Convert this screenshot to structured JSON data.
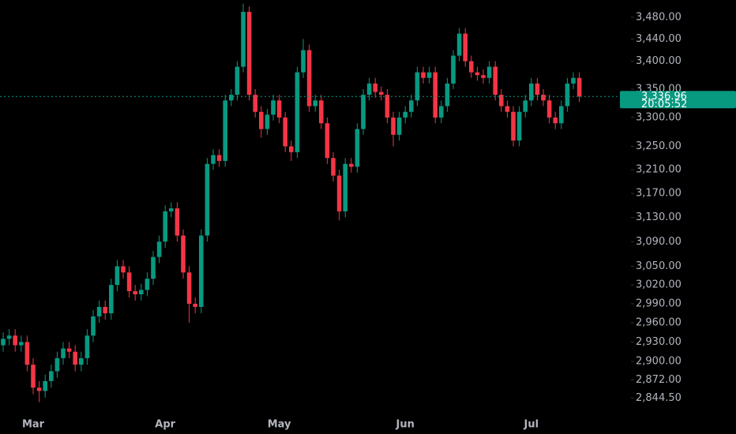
{
  "chart_data": {
    "type": "candlestick",
    "log_scale": true,
    "up_color": "#089981",
    "down_color": "#f23645",
    "ylim": [
      2820,
      3512
    ],
    "yticks": [
      {
        "value": 3480,
        "label": "3,480.00"
      },
      {
        "value": 3440,
        "label": "3,440.00"
      },
      {
        "value": 3400,
        "label": "3,400.00"
      },
      {
        "value": 3350,
        "label": "3,350.00"
      },
      {
        "value": 3300,
        "label": "3,300.00"
      },
      {
        "value": 3250,
        "label": "3,250.00"
      },
      {
        "value": 3210,
        "label": "3,210.00"
      },
      {
        "value": 3170,
        "label": "3,170.00"
      },
      {
        "value": 3130,
        "label": "3,130.00"
      },
      {
        "value": 3090,
        "label": "3,090.00"
      },
      {
        "value": 3050,
        "label": "3,050.00"
      },
      {
        "value": 3020,
        "label": "3,020.00"
      },
      {
        "value": 2990,
        "label": "2,990.00"
      },
      {
        "value": 2960,
        "label": "2,960.00"
      },
      {
        "value": 2930,
        "label": "2,930.00"
      },
      {
        "value": 2900,
        "label": "2,900.00"
      },
      {
        "value": 2872,
        "label": "2,872.00"
      },
      {
        "value": 2844.5,
        "label": "2,844.50"
      }
    ],
    "last_price": {
      "value": 3336.96,
      "label": "3,336.96"
    },
    "countdown": "20:05:52",
    "categories": [
      null,
      null,
      null,
      null,
      null,
      "Mar",
      null,
      null,
      null,
      null,
      null,
      null,
      null,
      null,
      null,
      null,
      null,
      null,
      null,
      null,
      null,
      null,
      null,
      null,
      null,
      null,
      null,
      "Apr",
      null,
      null,
      null,
      null,
      null,
      null,
      null,
      null,
      null,
      null,
      null,
      null,
      null,
      null,
      null,
      null,
      null,
      null,
      "May",
      null,
      null,
      null,
      null,
      null,
      null,
      null,
      null,
      null,
      null,
      null,
      null,
      null,
      null,
      null,
      null,
      null,
      null,
      null,
      null,
      "Jun",
      null,
      null,
      null,
      null,
      null,
      null,
      null,
      null,
      null,
      null,
      null,
      null,
      null,
      null,
      null,
      null,
      null,
      null,
      null,
      null,
      "Jul",
      null,
      null,
      null,
      null,
      null,
      null,
      null,
      null
    ],
    "open": [
      2925,
      2935,
      2940,
      2925,
      2930,
      2895,
      2860,
      2855,
      2870,
      2885,
      2905,
      2920,
      2915,
      2895,
      2905,
      2940,
      2970,
      2985,
      2975,
      3020,
      3050,
      3040,
      3010,
      3005,
      3012,
      3030,
      3065,
      3090,
      3140,
      3145,
      3100,
      3040,
      2990,
      2985,
      3100,
      3220,
      3235,
      3225,
      3330,
      3340,
      3390,
      3490,
      3340,
      3310,
      3280,
      3305,
      3330,
      3300,
      3250,
      3240,
      3380,
      3420,
      3320,
      3330,
      3290,
      3230,
      3200,
      3140,
      3220,
      3215,
      3280,
      3340,
      3360,
      3345,
      3340,
      3300,
      3270,
      3300,
      3310,
      3330,
      3380,
      3370,
      3380,
      3300,
      3320,
      3360,
      3410,
      3450,
      3400,
      3380,
      3375,
      3370,
      3390,
      3340,
      3320,
      3310,
      3260,
      3310,
      3330,
      3360,
      3340,
      3330,
      3300,
      3290,
      3320,
      3360,
      3370
    ],
    "high": [
      2945,
      2950,
      2950,
      2940,
      2940,
      2905,
      2870,
      2880,
      2895,
      2915,
      2930,
      2930,
      2925,
      2915,
      2950,
      2980,
      2995,
      2995,
      3030,
      3060,
      3060,
      3050,
      3020,
      3022,
      3040,
      3075,
      3100,
      3150,
      3155,
      3155,
      3110,
      3050,
      3000,
      3110,
      3230,
      3245,
      3245,
      3340,
      3350,
      3400,
      3505,
      3500,
      3350,
      3320,
      3315,
      3340,
      3340,
      3310,
      3260,
      3390,
      3440,
      3430,
      3340,
      3340,
      3300,
      3240,
      3210,
      3230,
      3230,
      3290,
      3350,
      3370,
      3370,
      3355,
      3350,
      3310,
      3310,
      3320,
      3340,
      3390,
      3390,
      3390,
      3390,
      3330,
      3370,
      3420,
      3460,
      3460,
      3410,
      3390,
      3385,
      3400,
      3400,
      3350,
      3330,
      3320,
      3320,
      3340,
      3370,
      3370,
      3350,
      3340,
      3310,
      3330,
      3370,
      3380,
      3380
    ],
    "low": [
      2915,
      2925,
      2915,
      2915,
      2885,
      2850,
      2838,
      2845,
      2860,
      2875,
      2895,
      2905,
      2885,
      2885,
      2895,
      2930,
      2960,
      2965,
      2965,
      3010,
      3030,
      3000,
      2995,
      2995,
      3002,
      3020,
      3055,
      3080,
      3130,
      3090,
      3030,
      2960,
      2975,
      2975,
      3090,
      3210,
      3215,
      3215,
      3320,
      3330,
      3380,
      3330,
      3300,
      3265,
      3270,
      3295,
      3290,
      3240,
      3225,
      3230,
      3370,
      3310,
      3310,
      3280,
      3220,
      3190,
      3125,
      3130,
      3205,
      3205,
      3270,
      3330,
      3335,
      3330,
      3290,
      3250,
      3260,
      3290,
      3300,
      3320,
      3360,
      3360,
      3290,
      3290,
      3310,
      3350,
      3400,
      3390,
      3370,
      3365,
      3360,
      3360,
      3330,
      3310,
      3300,
      3250,
      3250,
      3300,
      3320,
      3330,
      3320,
      3290,
      3280,
      3280,
      3310,
      3350,
      3327
    ],
    "close": [
      2935,
      2940,
      2925,
      2930,
      2895,
      2860,
      2855,
      2870,
      2885,
      2905,
      2920,
      2915,
      2895,
      2905,
      2940,
      2970,
      2985,
      2975,
      3020,
      3050,
      3040,
      3010,
      3005,
      3012,
      3030,
      3065,
      3090,
      3140,
      3145,
      3100,
      3040,
      2990,
      2985,
      3100,
      3220,
      3235,
      3225,
      3330,
      3340,
      3390,
      3490,
      3340,
      3310,
      3280,
      3305,
      3330,
      3300,
      3250,
      3240,
      3380,
      3420,
      3320,
      3330,
      3290,
      3230,
      3200,
      3140,
      3220,
      3215,
      3280,
      3340,
      3360,
      3345,
      3340,
      3300,
      3270,
      3300,
      3310,
      3330,
      3380,
      3370,
      3380,
      3300,
      3320,
      3360,
      3410,
      3450,
      3400,
      3380,
      3375,
      3370,
      3390,
      3340,
      3320,
      3310,
      3260,
      3310,
      3330,
      3360,
      3340,
      3330,
      3300,
      3290,
      3320,
      3360,
      3370,
      3337
    ]
  }
}
